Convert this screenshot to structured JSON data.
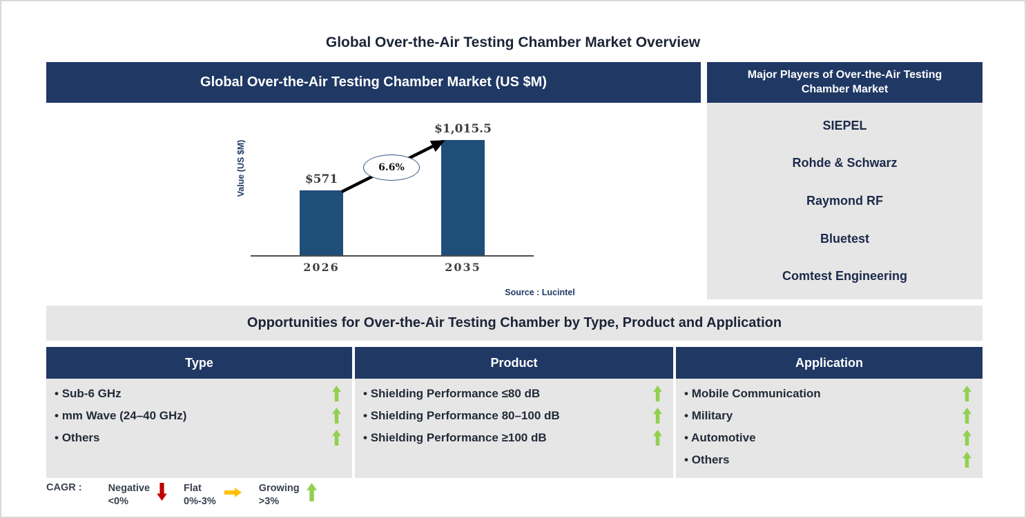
{
  "page": {
    "title": "Global Over-the-Air Testing Chamber Market Overview"
  },
  "chart_data": {
    "type": "bar",
    "title": "Global Over-the-Air Testing Chamber Market (US $M)",
    "categories": [
      "2026",
      "2035"
    ],
    "values": [
      571,
      1015.5
    ],
    "bar_labels": [
      "$571",
      "$1,015.5"
    ],
    "xlabel": "",
    "ylabel": "Value (US $M)",
    "ylim": [
      0,
      1100
    ],
    "grid": false,
    "bar_color": "#1f4e79",
    "cagr_text": "6.6%",
    "annotation": "CAGR 6.6% shown in ellipse on growth arrow between bars",
    "source": "Source : Lucintel"
  },
  "major_players": {
    "header": "Major Players of Over-the-Air Testing Chamber Market",
    "companies": [
      "SIEPEL",
      "Rohde & Schwarz",
      "Raymond RF",
      "Bluetest",
      "Comtest Engineering"
    ]
  },
  "opportunities": {
    "header": "Opportunities for Over-the-Air Testing Chamber by Type, Product and Application",
    "columns": [
      {
        "header": "Type",
        "trend": "up",
        "items": [
          "Sub-6 GHz",
          "mm Wave (24–40 GHz)",
          "Others"
        ]
      },
      {
        "header": "Product",
        "trend": "up",
        "items": [
          "Shielding Performance ≤80 dB",
          "Shielding Performance 80–100 dB",
          "Shielding Performance ≥100 dB"
        ]
      },
      {
        "header": "Application",
        "trend": "up",
        "items": [
          "Mobile Communication",
          "Military",
          "Automotive",
          "Others"
        ]
      }
    ]
  },
  "legend": {
    "label": "CAGR :",
    "entries": [
      {
        "name": "Negative",
        "range": "<0%",
        "direction": "down",
        "color": "#c00000"
      },
      {
        "name": "Flat",
        "range": "0%-3%",
        "direction": "right",
        "color": "#ffc000"
      },
      {
        "name": "Growing",
        "range": ">3%",
        "direction": "up",
        "color": "#92d050"
      }
    ]
  },
  "colors": {
    "header_navy": "#1f3864",
    "panel_gray": "#e7e6e6",
    "bar_blue": "#1f4e79",
    "growth_green": "#92d050",
    "negative_red": "#c00000",
    "flat_yellow": "#ffc000",
    "source_navy": "#1f3864"
  }
}
